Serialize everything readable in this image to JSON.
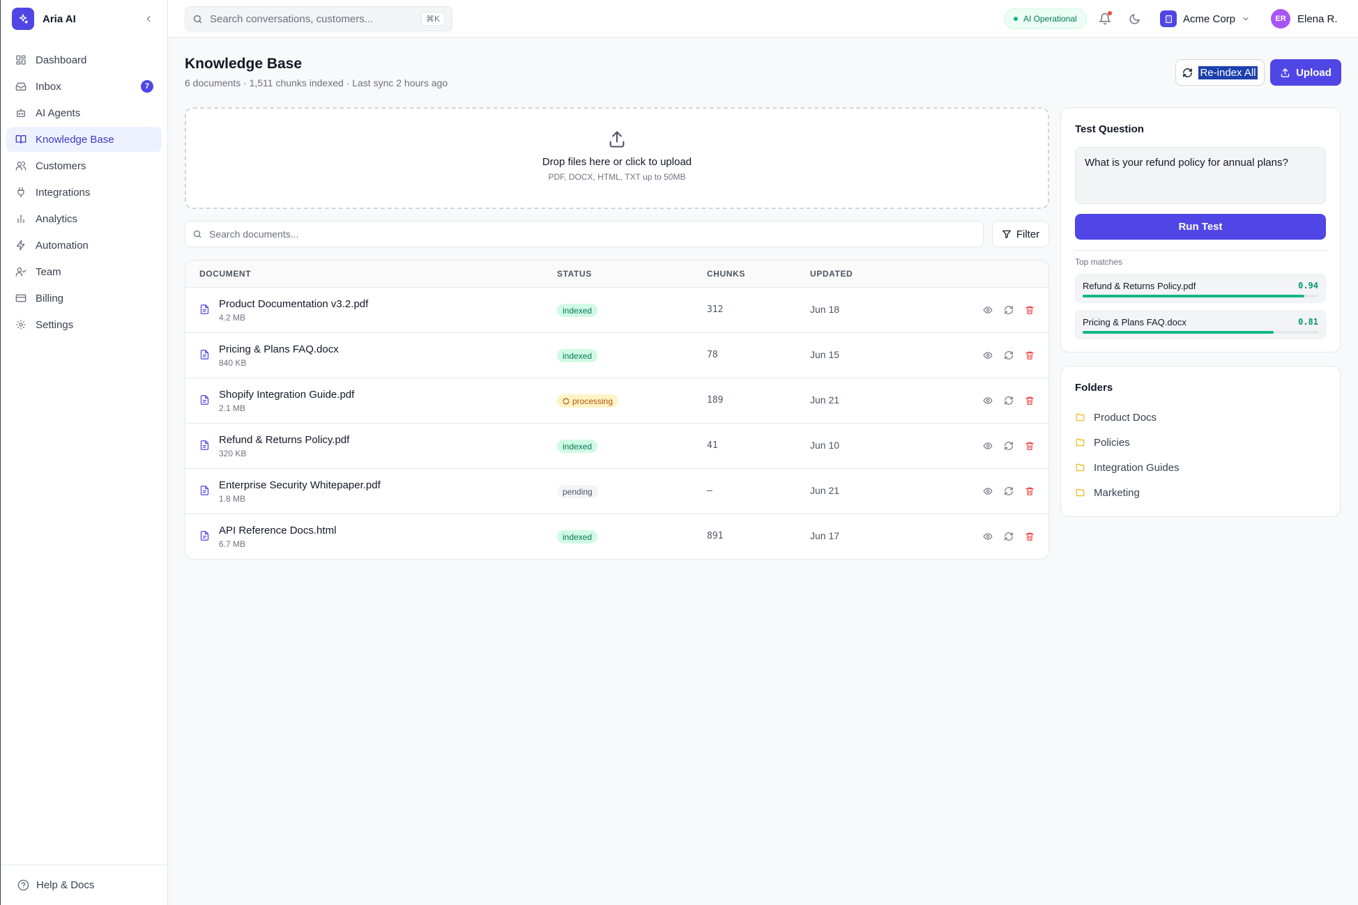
{
  "brand": {
    "name": "Aria AI"
  },
  "sidebar": {
    "items": [
      {
        "label": "Dashboard",
        "icon": "dashboard-icon"
      },
      {
        "label": "Inbox",
        "icon": "inbox-icon",
        "badge": "7"
      },
      {
        "label": "AI Agents",
        "icon": "bot-icon"
      },
      {
        "label": "Knowledge Base",
        "icon": "book-icon",
        "active": true
      },
      {
        "label": "Customers",
        "icon": "users-icon"
      },
      {
        "label": "Integrations",
        "icon": "plug-icon"
      },
      {
        "label": "Analytics",
        "icon": "bar-chart-icon"
      },
      {
        "label": "Automation",
        "icon": "zap-icon"
      },
      {
        "label": "Team",
        "icon": "user-check-icon"
      },
      {
        "label": "Billing",
        "icon": "credit-card-icon"
      },
      {
        "label": "Settings",
        "icon": "gear-icon"
      }
    ],
    "footer_label": "Help & Docs"
  },
  "topbar": {
    "search_placeholder": "Search conversations, customers...",
    "search_shortcut": "⌘K",
    "ai_status": "AI Operational",
    "org_name": "Acme Corp",
    "user_initials": "ER",
    "user_name": "Elena R."
  },
  "header": {
    "title": "Knowledge Base",
    "subtitle": "6 documents · 1,511 chunks indexed · Last sync 2 hours ago",
    "reindex_label": "Re-index All",
    "upload_label": "Upload"
  },
  "dropzone": {
    "title": "Drop files here or click to upload",
    "subtitle": "PDF, DOCX, HTML, TXT up to 50MB"
  },
  "doc_search": {
    "placeholder": "Search documents...",
    "filter_label": "Filter"
  },
  "table": {
    "columns": [
      "DOCUMENT",
      "STATUS",
      "CHUNKS",
      "UPDATED"
    ],
    "rows": [
      {
        "name": "Product Documentation v3.2.pdf",
        "size": "4.2 MB",
        "status": "indexed",
        "chunks": "312",
        "updated": "Jun 18"
      },
      {
        "name": "Pricing & Plans FAQ.docx",
        "size": "840 KB",
        "status": "indexed",
        "chunks": "78",
        "updated": "Jun 15"
      },
      {
        "name": "Shopify Integration Guide.pdf",
        "size": "2.1 MB",
        "status": "processing",
        "chunks": "189",
        "updated": "Jun 21"
      },
      {
        "name": "Refund & Returns Policy.pdf",
        "size": "320 KB",
        "status": "indexed",
        "chunks": "41",
        "updated": "Jun 10"
      },
      {
        "name": "Enterprise Security Whitepaper.pdf",
        "size": "1.8 MB",
        "status": "pending",
        "chunks": "–",
        "updated": "Jun 21"
      },
      {
        "name": "API Reference Docs.html",
        "size": "6.7 MB",
        "status": "indexed",
        "chunks": "891",
        "updated": "Jun 17"
      }
    ]
  },
  "test_panel": {
    "title": "Test Question",
    "question": "What is your refund policy for annual plans?",
    "run_label": "Run Test",
    "matches_label": "Top matches",
    "matches": [
      {
        "name": "Refund & Returns Policy.pdf",
        "score": "0.94",
        "fraction": 0.94
      },
      {
        "name": "Pricing & Plans FAQ.docx",
        "score": "0.81",
        "fraction": 0.81
      }
    ]
  },
  "folders": {
    "title": "Folders",
    "items": [
      "Product Docs",
      "Policies",
      "Integration Guides",
      "Marketing"
    ]
  },
  "colors": {
    "accent": "#4f46e5",
    "success": "#10b981",
    "warning": "#b45309",
    "danger": "#ef4444"
  }
}
